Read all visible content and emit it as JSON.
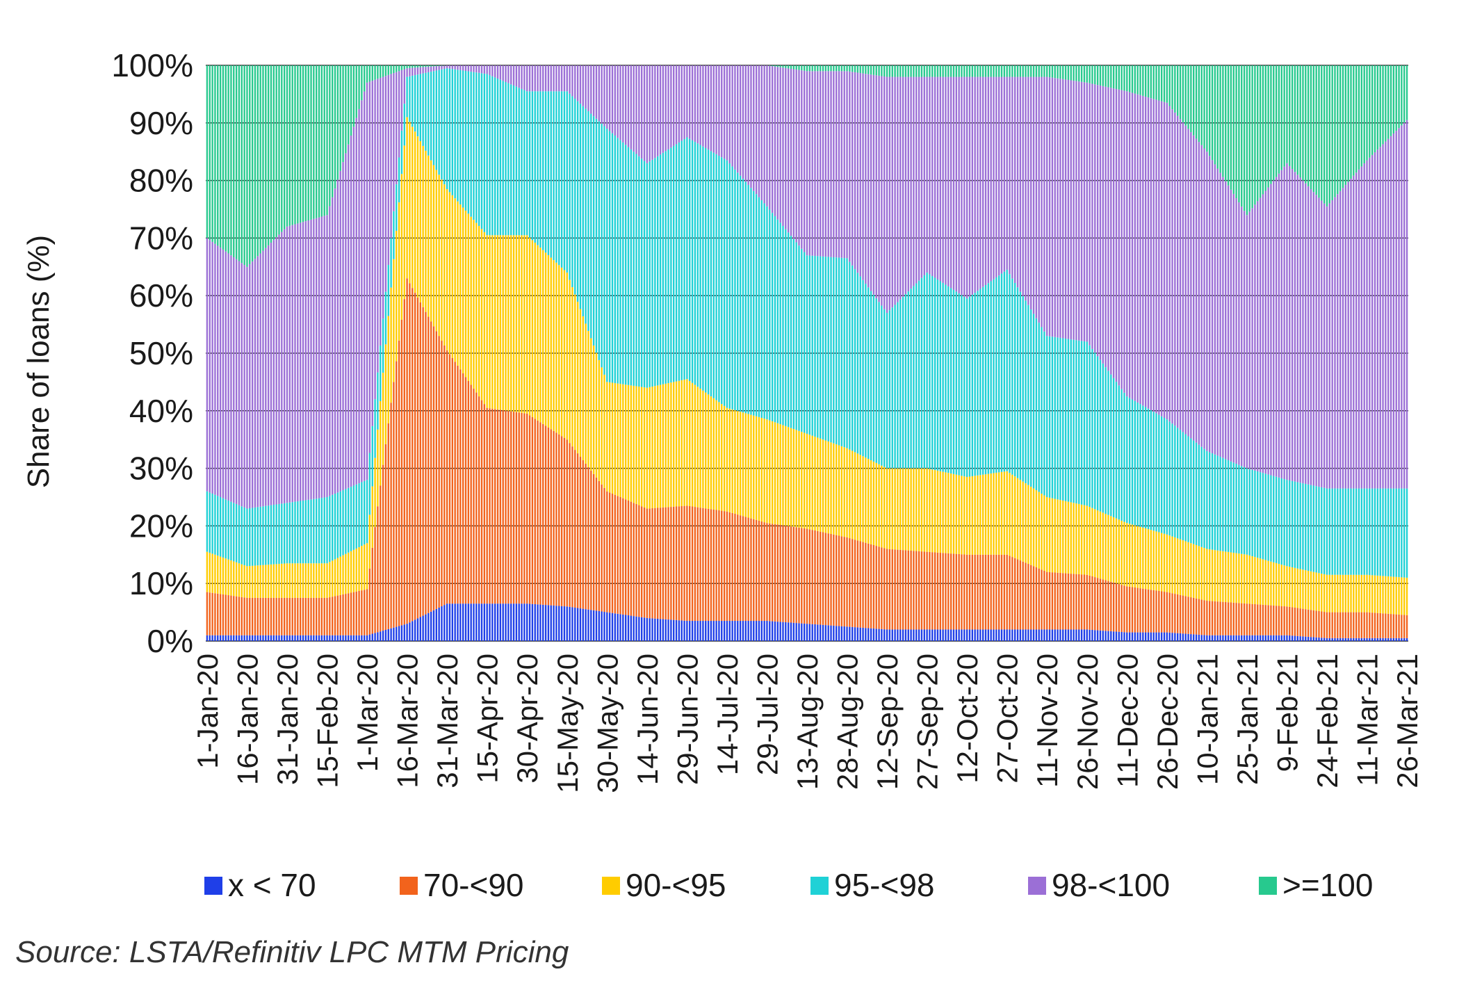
{
  "chart_data": {
    "type": "bar",
    "stacked": true,
    "percent_stacked": true,
    "ylabel": "Share of loans (%)",
    "xlabel": "",
    "ylim": [
      0,
      100
    ],
    "y_ticks": [
      "0%",
      "10%",
      "20%",
      "30%",
      "40%",
      "50%",
      "60%",
      "70%",
      "80%",
      "90%",
      "100%"
    ],
    "grid": "horizontal",
    "legend_position": "bottom",
    "x_tick_labels": [
      "1-Jan-20",
      "16-Jan-20",
      "31-Jan-20",
      "15-Feb-20",
      "1-Mar-20",
      "16-Mar-20",
      "31-Mar-20",
      "15-Apr-20",
      "30-Apr-20",
      "15-May-20",
      "30-May-20",
      "14-Jun-20",
      "29-Jun-20",
      "14-Jul-20",
      "29-Jul-20",
      "13-Aug-20",
      "28-Aug-20",
      "12-Sep-20",
      "27-Sep-20",
      "12-Oct-20",
      "27-Oct-20",
      "11-Nov-20",
      "26-Nov-20",
      "11-Dec-20",
      "26-Dec-20",
      "10-Jan-21",
      "25-Jan-21",
      "9-Feb-21",
      "24-Feb-21",
      "11-Mar-21",
      "26-Mar-21"
    ],
    "series_names": [
      "x < 70",
      "70-<90",
      "90-<95",
      "95-<98",
      "98-<100",
      ">=100"
    ],
    "series_colors": [
      "#1f3fe8",
      "#f2631c",
      "#ffcc00",
      "#1fd1d6",
      "#9b6fd6",
      "#27c98e"
    ],
    "anchors": [
      {
        "x": "1-Jan-20",
        "values": [
          1,
          7.5,
          7,
          10.5,
          44,
          30
        ]
      },
      {
        "x": "16-Jan-20",
        "values": [
          1,
          6.5,
          5.5,
          10,
          42,
          35
        ]
      },
      {
        "x": "31-Jan-20",
        "values": [
          1,
          6.5,
          6,
          10.5,
          48,
          28
        ]
      },
      {
        "x": "15-Feb-20",
        "values": [
          1,
          6.5,
          6,
          11.5,
          49,
          26
        ]
      },
      {
        "x": "1-Mar-20",
        "values": [
          1,
          8,
          8,
          11,
          69,
          3
        ]
      },
      {
        "x": "16-Mar-20",
        "values": [
          3,
          60,
          28,
          7,
          1.5,
          0.5
        ]
      },
      {
        "x": "31-Mar-20",
        "values": [
          6.5,
          44,
          28,
          21,
          0.5,
          0
        ]
      },
      {
        "x": "15-Apr-20",
        "values": [
          6.5,
          34,
          30,
          28,
          1.5,
          0
        ]
      },
      {
        "x": "30-Apr-20",
        "values": [
          6.5,
          33,
          31,
          25,
          4.5,
          0
        ]
      },
      {
        "x": "15-May-20",
        "values": [
          6,
          29,
          29,
          31.5,
          4.5,
          0
        ]
      },
      {
        "x": "30-May-20",
        "values": [
          5,
          21,
          19,
          44,
          11,
          0
        ]
      },
      {
        "x": "14-Jun-20",
        "values": [
          4,
          19,
          21,
          39,
          17,
          0
        ]
      },
      {
        "x": "29-Jun-20",
        "values": [
          3.5,
          20,
          22,
          42,
          12.5,
          0
        ]
      },
      {
        "x": "14-Jul-20",
        "values": [
          3.5,
          19,
          18,
          43,
          16.5,
          0
        ]
      },
      {
        "x": "29-Jul-20",
        "values": [
          3.5,
          17,
          18,
          37,
          24.5,
          0
        ]
      },
      {
        "x": "13-Aug-20",
        "values": [
          3,
          16.5,
          16.5,
          31,
          32,
          1
        ]
      },
      {
        "x": "28-Aug-20",
        "values": [
          2.5,
          15.5,
          15.5,
          33,
          32.5,
          1
        ]
      },
      {
        "x": "12-Sep-20",
        "values": [
          2,
          14,
          14,
          27,
          41,
          2
        ]
      },
      {
        "x": "27-Sep-20",
        "values": [
          2,
          13.5,
          14.5,
          34,
          34,
          2
        ]
      },
      {
        "x": "12-Oct-20",
        "values": [
          2,
          13,
          13.5,
          31,
          38.5,
          2
        ]
      },
      {
        "x": "27-Oct-20",
        "values": [
          2,
          13,
          14.5,
          35,
          33.5,
          2
        ]
      },
      {
        "x": "11-Nov-20",
        "values": [
          2,
          10,
          13,
          28,
          45,
          2
        ]
      },
      {
        "x": "26-Nov-20",
        "values": [
          2,
          9.5,
          12,
          28.5,
          45,
          3
        ]
      },
      {
        "x": "11-Dec-20",
        "values": [
          1.5,
          8,
          11,
          22,
          53,
          4.5
        ]
      },
      {
        "x": "26-Dec-20",
        "values": [
          1.5,
          7,
          10,
          20,
          55,
          6.5
        ]
      },
      {
        "x": "10-Jan-21",
        "values": [
          1,
          6,
          9,
          17,
          52,
          15
        ]
      },
      {
        "x": "25-Jan-21",
        "values": [
          1,
          5.5,
          8.5,
          15,
          44,
          26
        ]
      },
      {
        "x": "9-Feb-21",
        "values": [
          1,
          5,
          7,
          15,
          55,
          17
        ]
      },
      {
        "x": "24-Feb-21",
        "values": [
          0.5,
          4.5,
          6.5,
          15,
          49,
          24.5
        ]
      },
      {
        "x": "11-Mar-21",
        "values": [
          0.5,
          4.5,
          6.5,
          15,
          57,
          16.5
        ]
      },
      {
        "x": "26-Mar-21",
        "values": [
          0.5,
          4,
          6.5,
          15.5,
          64,
          9.5
        ]
      }
    ]
  },
  "source_note": "Source: LSTA/Refinitiv LPC MTM Pricing"
}
